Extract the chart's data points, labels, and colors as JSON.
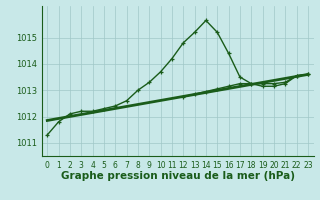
{
  "hours": [
    0,
    1,
    2,
    3,
    4,
    5,
    6,
    7,
    8,
    9,
    10,
    11,
    12,
    13,
    14,
    15,
    16,
    17,
    18,
    19,
    20,
    21,
    22,
    23
  ],
  "series1": [
    1011.3,
    1011.8,
    1012.1,
    1012.2,
    1012.2,
    1012.3,
    1012.4,
    1012.6,
    1013.0,
    1013.3,
    1013.7,
    1014.2,
    1014.8,
    1015.2,
    1015.65,
    1015.2,
    1014.4,
    1013.5,
    1013.25,
    1013.15,
    1013.15,
    1013.25,
    1013.55,
    1013.6
  ],
  "series2": [
    null,
    null,
    null,
    null,
    null,
    null,
    null,
    null,
    null,
    null,
    null,
    null,
    1012.75,
    1012.85,
    1012.95,
    1013.05,
    1013.15,
    1013.25,
    1013.25,
    1013.25,
    1013.25,
    1013.3,
    1013.55,
    1013.6
  ],
  "trend_x": [
    0,
    23
  ],
  "trend_y": [
    1011.85,
    1013.6
  ],
  "background_color": "#c8e8e8",
  "grid_color": "#a0c8c8",
  "line_color": "#1a5c1a",
  "xlabel": "Graphe pression niveau de la mer (hPa)",
  "ylim": [
    1010.5,
    1016.2
  ],
  "yticks": [
    1011,
    1012,
    1013,
    1014,
    1015
  ],
  "xticks": [
    0,
    1,
    2,
    3,
    4,
    5,
    6,
    7,
    8,
    9,
    10,
    11,
    12,
    13,
    14,
    15,
    16,
    17,
    18,
    19,
    20,
    21,
    22,
    23
  ],
  "marker": "+",
  "markersize": 3.5,
  "linewidth": 1.0,
  "xlabel_fontsize": 7.5,
  "tick_fontsize": 5.5,
  "tick_color": "#1a5c1a",
  "spine_color": "#1a5c1a"
}
